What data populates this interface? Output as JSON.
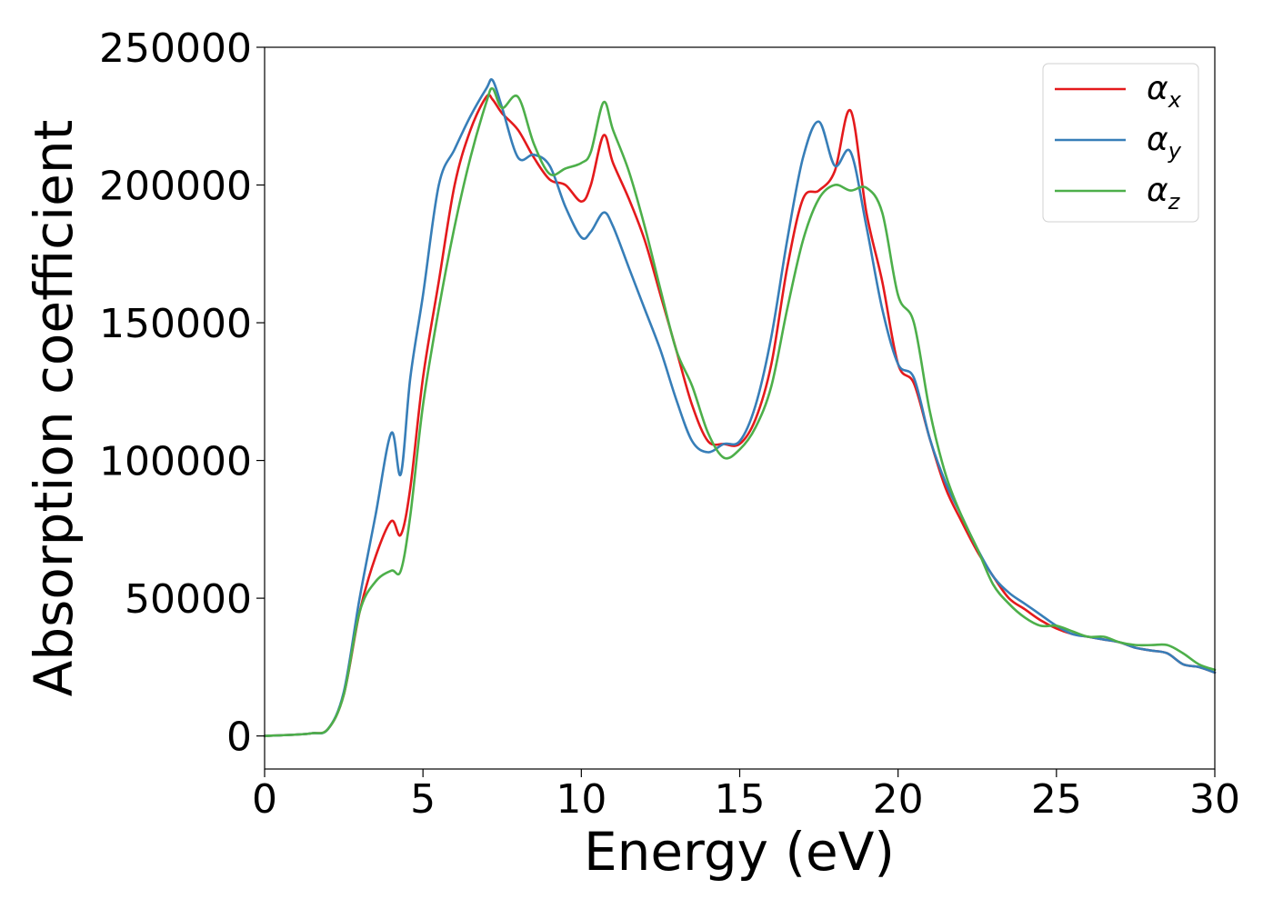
{
  "chart_data": {
    "type": "line",
    "title": "",
    "xlabel": "Energy (eV)",
    "ylabel": "Absorption coefficient",
    "xlim": [
      0,
      30
    ],
    "ylim": [
      -12000,
      250000
    ],
    "x_ticks": [
      0,
      5,
      10,
      15,
      20,
      25,
      30
    ],
    "y_ticks": [
      0,
      50000,
      100000,
      150000,
      200000,
      250000
    ],
    "x_tick_labels": [
      "0",
      "5",
      "10",
      "15",
      "20",
      "25",
      "30"
    ],
    "y_tick_labels": [
      "0",
      "50000",
      "100000",
      "150000",
      "200000",
      "250000"
    ],
    "grid": false,
    "legend_position": "top-right",
    "series": [
      {
        "name": "α_x",
        "color": "#e41a1c",
        "x": [
          0,
          1,
          1.5,
          2,
          2.5,
          3,
          3.5,
          4,
          4.3,
          4.6,
          5,
          5.5,
          6,
          6.5,
          7,
          7.2,
          7.5,
          8,
          8.5,
          9,
          9.5,
          10,
          10.3,
          10.7,
          11,
          11.5,
          12,
          12.5,
          13,
          13.5,
          14,
          14.5,
          15,
          15.5,
          16,
          16.5,
          17,
          17.5,
          18,
          18.5,
          19,
          19.5,
          20,
          20.5,
          21,
          21.5,
          22,
          22.5,
          23,
          23.5,
          24,
          24.5,
          25,
          25.5,
          26,
          26.5,
          27,
          27.5,
          28,
          28.5,
          29,
          29.5,
          30
        ],
        "y": [
          0,
          500,
          1000,
          2500,
          15000,
          45000,
          65000,
          78000,
          73000,
          90000,
          130000,
          165000,
          200000,
          220000,
          232000,
          231000,
          226000,
          220000,
          210000,
          202000,
          200000,
          194000,
          200000,
          218000,
          208000,
          195000,
          180000,
          160000,
          140000,
          120000,
          107000,
          106000,
          106000,
          115000,
          135000,
          170000,
          195000,
          198000,
          205000,
          227000,
          190000,
          165000,
          135000,
          128000,
          108000,
          90000,
          78000,
          67000,
          58000,
          50000,
          46000,
          42000,
          39000,
          37000,
          36000,
          35000,
          34000,
          32000,
          31000,
          30000,
          26000,
          25000,
          23000
        ]
      },
      {
        "name": "α_y",
        "color": "#377eb8",
        "x": [
          0,
          1,
          1.5,
          2,
          2.5,
          3,
          3.5,
          4,
          4.3,
          4.6,
          5,
          5.5,
          6,
          6.5,
          7,
          7.2,
          7.5,
          8,
          8.5,
          9,
          9.5,
          10,
          10.3,
          10.7,
          11,
          11.5,
          12,
          12.5,
          13,
          13.5,
          14,
          14.5,
          15,
          15.5,
          16,
          16.5,
          17,
          17.5,
          18,
          18.5,
          19,
          19.5,
          20,
          20.5,
          21,
          21.5,
          22,
          22.5,
          23,
          23.5,
          24,
          24.5,
          25,
          25.5,
          26,
          26.5,
          27,
          27.5,
          28,
          28.5,
          29,
          29.5,
          30
        ],
        "y": [
          0,
          500,
          1000,
          2500,
          16000,
          50000,
          80000,
          110000,
          95000,
          130000,
          160000,
          200000,
          213000,
          225000,
          235000,
          238000,
          228000,
          210000,
          211000,
          207000,
          192000,
          181000,
          183000,
          190000,
          185000,
          170000,
          155000,
          140000,
          122000,
          107000,
          103000,
          106000,
          107000,
          120000,
          145000,
          180000,
          210000,
          223000,
          207000,
          212000,
          185000,
          155000,
          135000,
          130000,
          108000,
          92000,
          80000,
          68000,
          58000,
          52000,
          48000,
          44000,
          40000,
          37000,
          36000,
          35000,
          34000,
          32000,
          31000,
          30000,
          26000,
          25000,
          23000
        ]
      },
      {
        "name": "α_z",
        "color": "#4daf4a",
        "x": [
          0,
          1,
          1.5,
          2,
          2.5,
          3,
          3.5,
          4,
          4.3,
          4.6,
          5,
          5.5,
          6,
          6.5,
          7,
          7.2,
          7.5,
          8,
          8.5,
          9,
          9.5,
          10,
          10.3,
          10.7,
          11,
          11.5,
          12,
          12.5,
          13,
          13.5,
          14,
          14.5,
          15,
          15.5,
          16,
          16.5,
          17,
          17.5,
          18,
          18.5,
          19,
          19.5,
          20,
          20.5,
          21,
          21.5,
          22,
          22.5,
          23,
          23.5,
          24,
          24.5,
          25,
          25.5,
          26,
          26.5,
          27,
          27.5,
          28,
          28.5,
          29,
          29.5,
          30
        ],
        "y": [
          0,
          500,
          1000,
          2500,
          15000,
          45000,
          56000,
          60000,
          60000,
          80000,
          120000,
          155000,
          185000,
          210000,
          230000,
          235000,
          228000,
          232000,
          215000,
          204000,
          206000,
          208000,
          212000,
          230000,
          220000,
          205000,
          185000,
          162000,
          140000,
          127000,
          110000,
          101000,
          104000,
          112000,
          127000,
          155000,
          180000,
          195000,
          200000,
          198000,
          199000,
          190000,
          160000,
          150000,
          118000,
          95000,
          80000,
          68000,
          55000,
          48000,
          43000,
          40000,
          40000,
          38000,
          36000,
          36000,
          34000,
          33000,
          33000,
          33000,
          30000,
          26000,
          24000
        ]
      }
    ]
  }
}
